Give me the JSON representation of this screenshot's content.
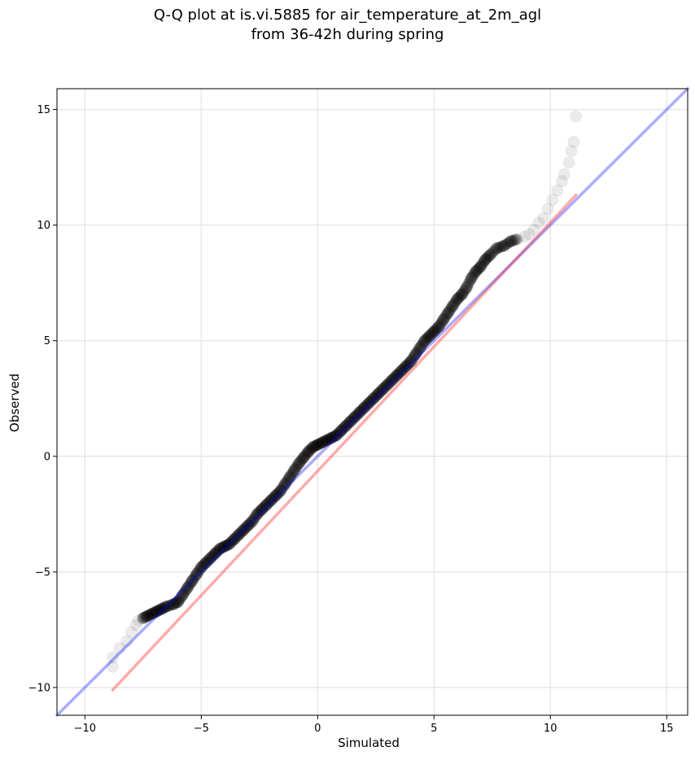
{
  "chart_data": {
    "type": "scatter",
    "title_lines": [
      "Q-Q plot at is.vi.5885 for air_temperature_at_2m_agl",
      "from 36-42h during spring"
    ],
    "xlabel": "Simulated",
    "ylabel": "Observed",
    "xlim": [
      -11.2,
      15.9
    ],
    "ylim": [
      -11.2,
      15.9
    ],
    "xticks": [
      -10,
      -5,
      0,
      5,
      10,
      15
    ],
    "yticks": [
      -10,
      -5,
      0,
      5,
      10,
      15
    ],
    "xtick_labels": [
      "−10",
      "−5",
      "0",
      "5",
      "10",
      "15"
    ],
    "ytick_labels": [
      "−10",
      "−5",
      "0",
      "5",
      "10",
      "15"
    ],
    "grid": true,
    "colors": {
      "points": "#000000",
      "identity_line": "#0000ff",
      "fit_line": "#ff0000",
      "grid": "#e8e8e8"
    },
    "series": [
      {
        "kind": "points",
        "x": [
          -8.8,
          -8.8,
          -8.5,
          -8.2,
          -8.0,
          -7.8,
          -7.7,
          -7.5,
          -7.3,
          -7.1,
          -6.9,
          -6.7,
          -6.5,
          -6.2,
          -6.0,
          -5.8,
          -5.6,
          -5.4,
          -5.2,
          -5.0,
          -4.8,
          -4.6,
          -4.4,
          -4.2,
          -4.0,
          -3.8,
          -3.6,
          -3.4,
          -3.2,
          -3.0,
          -2.8,
          -2.6,
          -2.4,
          -2.2,
          -2.0,
          -1.8,
          -1.6,
          -1.4,
          -1.2,
          -1.0,
          -0.8,
          -0.6,
          -0.4,
          -0.2,
          0.0,
          0.2,
          0.4,
          0.6,
          0.8,
          1.0,
          1.2,
          1.4,
          1.6,
          1.8,
          2.0,
          2.2,
          2.4,
          2.6,
          2.8,
          3.0,
          3.2,
          3.4,
          3.6,
          3.8,
          4.0,
          4.2,
          4.4,
          4.6,
          4.8,
          5.0,
          5.2,
          5.4,
          5.6,
          5.8,
          6.0,
          6.2,
          6.4,
          6.6,
          6.8,
          7.0,
          7.2,
          7.4,
          7.7,
          8.0,
          8.3,
          8.6,
          8.9,
          9.1,
          9.3,
          9.5,
          9.7,
          9.9,
          10.1,
          10.3,
          10.5,
          10.6,
          10.8,
          10.9,
          11.0,
          11.1
        ],
        "y": [
          -8.7,
          -9.1,
          -8.3,
          -8.0,
          -7.6,
          -7.3,
          -7.1,
          -7.0,
          -6.9,
          -6.8,
          -6.7,
          -6.6,
          -6.5,
          -6.4,
          -6.3,
          -6.0,
          -5.7,
          -5.4,
          -5.1,
          -4.8,
          -4.6,
          -4.4,
          -4.2,
          -4.0,
          -3.9,
          -3.8,
          -3.6,
          -3.4,
          -3.2,
          -3.0,
          -2.8,
          -2.5,
          -2.3,
          -2.1,
          -1.9,
          -1.7,
          -1.5,
          -1.2,
          -0.9,
          -0.6,
          -0.3,
          -0.05,
          0.2,
          0.4,
          0.5,
          0.6,
          0.7,
          0.8,
          0.9,
          1.1,
          1.3,
          1.5,
          1.7,
          1.9,
          2.1,
          2.3,
          2.5,
          2.7,
          2.9,
          3.1,
          3.3,
          3.5,
          3.7,
          3.9,
          4.1,
          4.4,
          4.7,
          5.0,
          5.2,
          5.4,
          5.6,
          5.9,
          6.2,
          6.5,
          6.8,
          7.0,
          7.3,
          7.7,
          8.0,
          8.2,
          8.5,
          8.7,
          9.0,
          9.1,
          9.3,
          9.4,
          9.5,
          9.6,
          9.8,
          10.1,
          10.3,
          10.7,
          11.1,
          11.5,
          11.9,
          12.2,
          12.7,
          13.2,
          13.6,
          14.7
        ]
      },
      {
        "kind": "identity_line",
        "x": [
          -11.2,
          15.9
        ],
        "y": [
          -11.2,
          15.9
        ]
      },
      {
        "kind": "fit_line",
        "x": [
          -8.8,
          11.1
        ],
        "y": [
          -10.1,
          11.3
        ]
      }
    ]
  }
}
